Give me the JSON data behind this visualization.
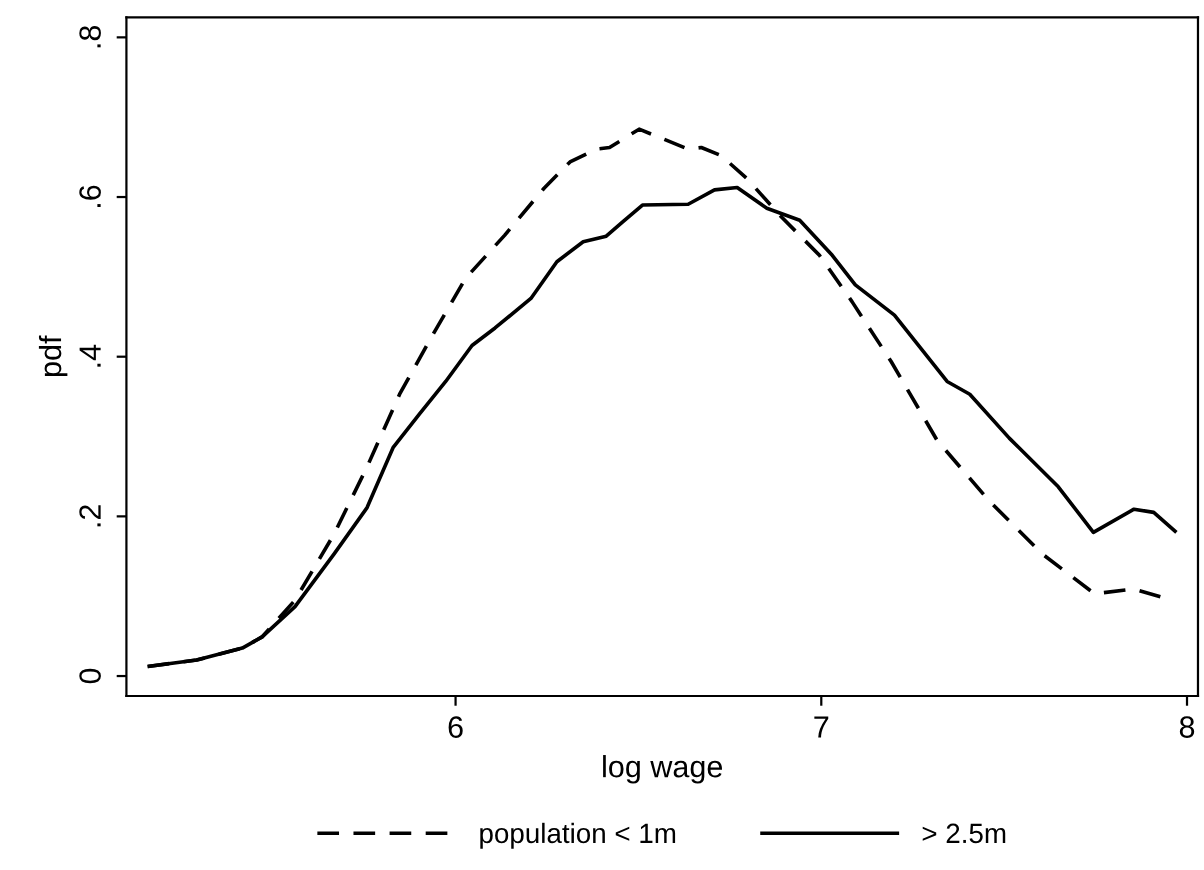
{
  "chart_data": {
    "type": "line",
    "xlabel": "log wage",
    "ylabel": "pdf",
    "xlim": [
      5.1,
      8.03
    ],
    "ylim": [
      -0.025,
      0.825
    ],
    "xticks": [
      6,
      7,
      8
    ],
    "yticks": [
      {
        "value": 0,
        "label": "0"
      },
      {
        "value": 0.2,
        "label": ".2"
      },
      {
        "value": 0.4,
        "label": ".4"
      },
      {
        "value": 0.6,
        "label": ".6"
      },
      {
        "value": 0.8,
        "label": ".8"
      }
    ],
    "grid": false,
    "legend": "bottom",
    "series": [
      {
        "name": "population < 1m",
        "color": "#000000",
        "line_style": "dashed",
        "x": [
          5.158,
          5.292,
          5.417,
          5.471,
          5.561,
          5.668,
          5.758,
          5.847,
          5.937,
          6.027,
          6.134,
          6.242,
          6.313,
          6.385,
          6.421,
          6.502,
          6.636,
          6.672,
          6.726,
          6.797,
          6.887,
          6.995,
          7.084,
          7.191,
          7.317,
          7.46,
          7.604,
          7.747,
          7.855,
          7.944
        ],
        "values": [
          0.012,
          0.02,
          0.035,
          0.049,
          0.095,
          0.178,
          0.262,
          0.353,
          0.427,
          0.498,
          0.552,
          0.611,
          0.644,
          0.66,
          0.662,
          0.685,
          0.66,
          0.662,
          0.652,
          0.623,
          0.577,
          0.527,
          0.469,
          0.394,
          0.295,
          0.219,
          0.153,
          0.103,
          0.109,
          0.097
        ]
      },
      {
        "name": "> 2.5m",
        "color": "#000000",
        "line_style": "solid",
        "x": [
          5.158,
          5.292,
          5.417,
          5.471,
          5.561,
          5.668,
          5.758,
          5.829,
          5.901,
          5.973,
          6.045,
          6.108,
          6.206,
          6.277,
          6.349,
          6.412,
          6.457,
          6.511,
          6.636,
          6.708,
          6.77,
          6.851,
          6.941,
          7.03,
          7.093,
          7.2,
          7.344,
          7.406,
          7.514,
          7.648,
          7.744,
          7.855,
          7.909,
          7.971
        ],
        "values": [
          0.012,
          0.02,
          0.035,
          0.049,
          0.087,
          0.153,
          0.211,
          0.286,
          0.328,
          0.369,
          0.414,
          0.436,
          0.473,
          0.519,
          0.544,
          0.551,
          0.569,
          0.59,
          0.591,
          0.609,
          0.612,
          0.586,
          0.571,
          0.527,
          0.49,
          0.452,
          0.369,
          0.353,
          0.298,
          0.237,
          0.18,
          0.209,
          0.205,
          0.18
        ]
      }
    ]
  }
}
